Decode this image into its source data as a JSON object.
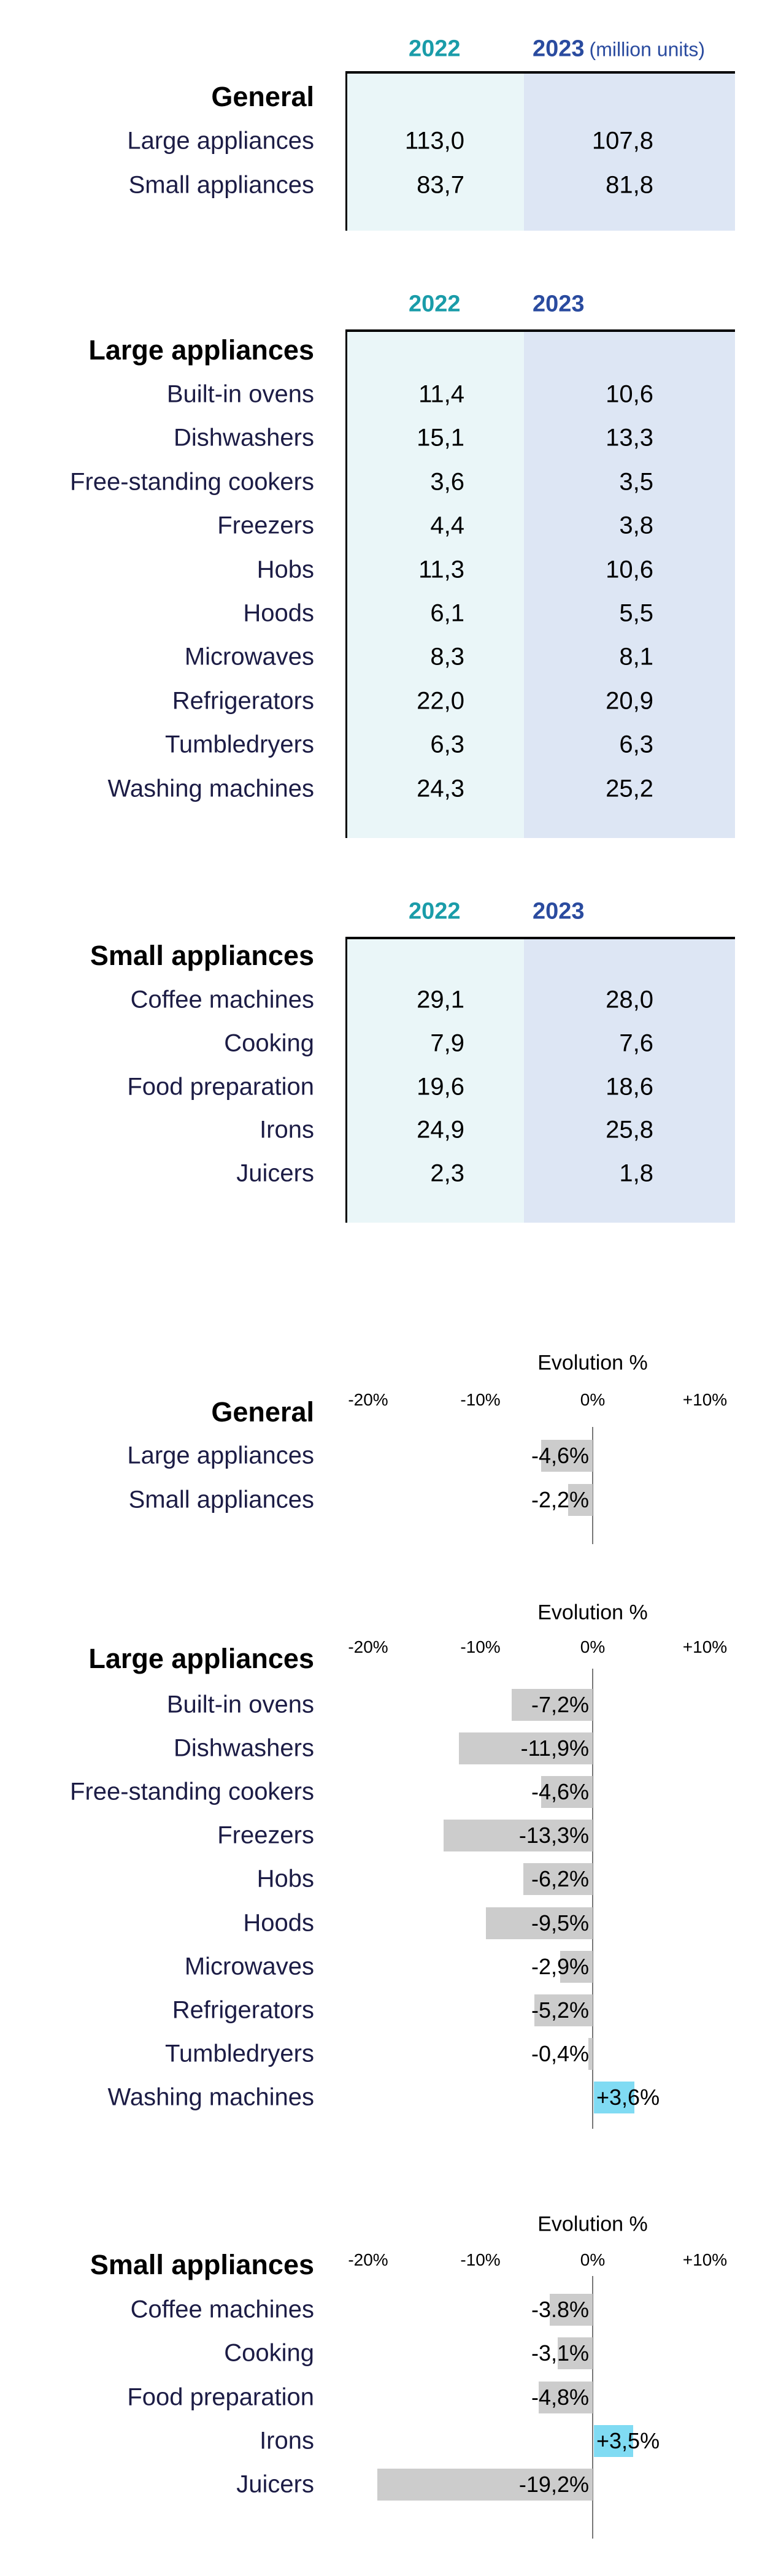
{
  "tables": [
    {
      "heading": "General",
      "year_2022": "2022",
      "year_2023": "2023",
      "unit": "(million units)",
      "rows": [
        {
          "label": "Large appliances",
          "v2022": "113,0",
          "v2023": "107,8"
        },
        {
          "label": "Small appliances",
          "v2022": "83,7",
          "v2023": "81,8"
        }
      ]
    },
    {
      "heading": "Large appliances",
      "year_2022": "2022",
      "year_2023": "2023",
      "rows": [
        {
          "label": "Built-in ovens",
          "v2022": "11,4",
          "v2023": "10,6"
        },
        {
          "label": "Dishwashers",
          "v2022": "15,1",
          "v2023": "13,3"
        },
        {
          "label": "Free-standing cookers",
          "v2022": "3,6",
          "v2023": "3,5"
        },
        {
          "label": "Freezers",
          "v2022": "4,4",
          "v2023": "3,8"
        },
        {
          "label": "Hobs",
          "v2022": "11,3",
          "v2023": "10,6"
        },
        {
          "label": "Hoods",
          "v2022": "6,1",
          "v2023": "5,5"
        },
        {
          "label": "Microwaves",
          "v2022": "8,3",
          "v2023": "8,1"
        },
        {
          "label": "Refrigerators",
          "v2022": "22,0",
          "v2023": "20,9"
        },
        {
          "label": "Tumbledryers",
          "v2022": "6,3",
          "v2023": "6,3"
        },
        {
          "label": "Washing machines",
          "v2022": "24,3",
          "v2023": "25,2"
        }
      ]
    },
    {
      "heading": "Small appliances",
      "year_2022": "2022",
      "year_2023": "2023",
      "rows": [
        {
          "label": "Coffee machines",
          "v2022": "29,1",
          "v2023": "28,0"
        },
        {
          "label": "Cooking",
          "v2022": "7,9",
          "v2023": "7,6"
        },
        {
          "label": "Food preparation",
          "v2022": "19,6",
          "v2023": "18,6"
        },
        {
          "label": "Irons",
          "v2022": "24,9",
          "v2023": "25,8"
        },
        {
          "label": "Juicers",
          "v2022": "2,3",
          "v2023": "1,8"
        }
      ]
    }
  ],
  "colors": {
    "year_2022": "#1a9ca9",
    "year_2023": "#2a4b9f",
    "col_2022_bg": "#eaf6f8",
    "col_2023_bg": "#dde6f4",
    "negative_bar": "#cccccc",
    "positive_bar": "#80dbf3"
  },
  "chart_data": [
    {
      "type": "bar",
      "orientation": "horizontal",
      "title": "Evolution %",
      "heading": "General",
      "xlim": [
        -20,
        10
      ],
      "ticks": [
        "-20%",
        "-10%",
        "0%",
        "+10%"
      ],
      "tick_values": [
        -20,
        -10,
        0,
        10
      ],
      "categories": [
        "Large appliances",
        "Small appliances"
      ],
      "values": [
        -4.6,
        -2.2
      ],
      "data_labels": [
        "-4,6%",
        "-2,2%"
      ]
    },
    {
      "type": "bar",
      "orientation": "horizontal",
      "title": "Evolution %",
      "heading": "Large appliances",
      "xlim": [
        -20,
        10
      ],
      "ticks": [
        "-20%",
        "-10%",
        "0%",
        "+10%"
      ],
      "tick_values": [
        -20,
        -10,
        0,
        10
      ],
      "categories": [
        "Built-in ovens",
        "Dishwashers",
        "Free-standing cookers",
        "Freezers",
        "Hobs",
        "Hoods",
        "Microwaves",
        "Refrigerators",
        "Tumbledryers",
        "Washing machines"
      ],
      "values": [
        -7.2,
        -11.9,
        -4.6,
        -13.3,
        -6.2,
        -9.5,
        -2.9,
        -5.2,
        -0.4,
        3.6
      ],
      "data_labels": [
        "-7,2%",
        "-11,9%",
        "-4,6%",
        "-13,3%",
        "-6,2%",
        "-9,5%",
        "-2,9%",
        "-5,2%",
        "-0,4%",
        "+3,6%"
      ]
    },
    {
      "type": "bar",
      "orientation": "horizontal",
      "title": "Evolution %",
      "heading": "Small appliances",
      "xlim": [
        -20,
        10
      ],
      "ticks": [
        "-20%",
        "-10%",
        "0%",
        "+10%"
      ],
      "tick_values": [
        -20,
        -10,
        0,
        10
      ],
      "categories": [
        "Coffee machines",
        "Cooking",
        "Food preparation",
        "Irons",
        "Juicers"
      ],
      "values": [
        -3.8,
        -3.1,
        -4.8,
        3.5,
        -19.2
      ],
      "data_labels": [
        "-3.8%",
        "-3,1%",
        "-4,8%",
        "+3,5%",
        "-19,2%"
      ]
    }
  ]
}
